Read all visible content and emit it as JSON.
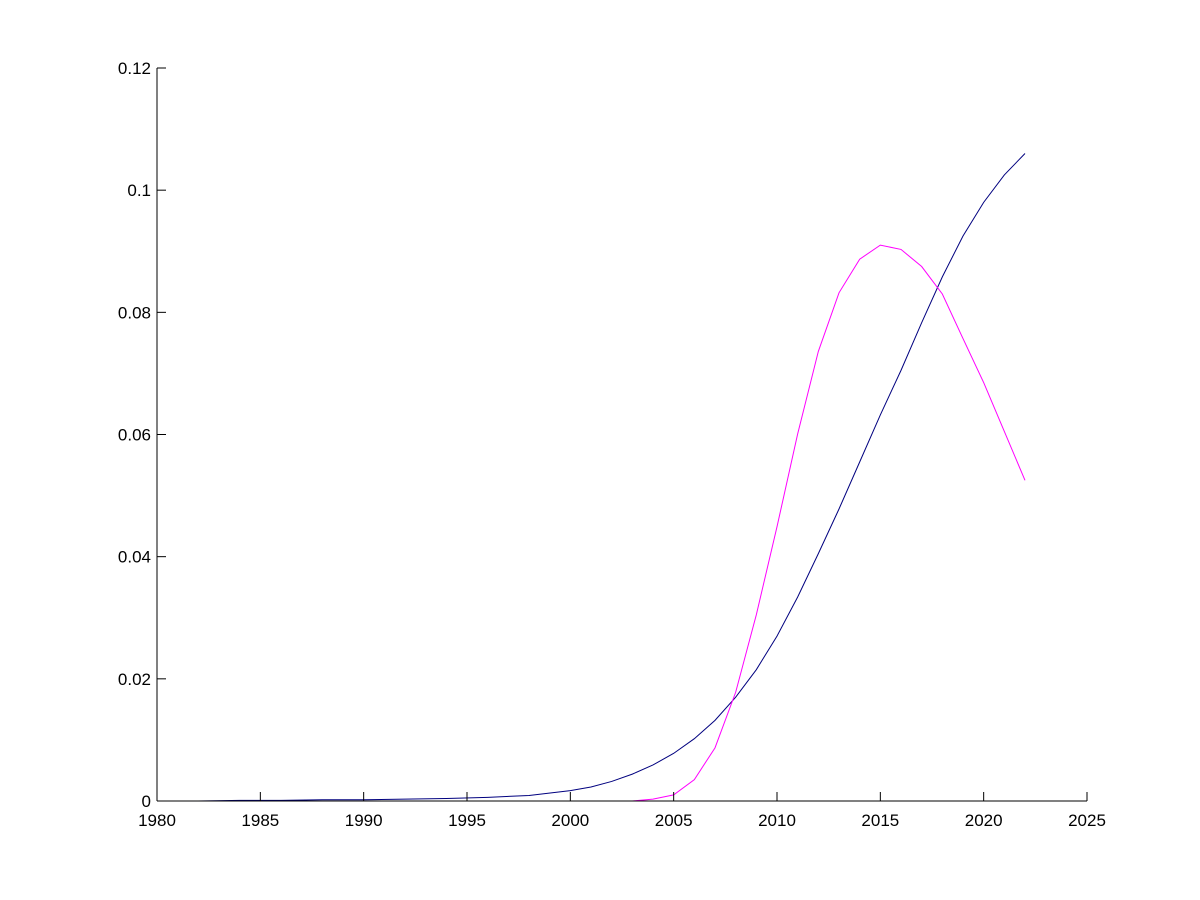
{
  "chart_data": {
    "type": "line",
    "title": "",
    "xlabel": "",
    "ylabel": "",
    "xlim": [
      1980,
      2025
    ],
    "ylim": [
      0,
      0.12
    ],
    "grid": false,
    "box": false,
    "xticks": [
      1980,
      1985,
      1990,
      1995,
      2000,
      2005,
      2010,
      2015,
      2020,
      2025
    ],
    "xtick_labels": [
      "1980",
      "1985",
      "1990",
      "1995",
      "2000",
      "2005",
      "2010",
      "2015",
      "2020",
      "2025"
    ],
    "yticks": [
      0,
      0.02,
      0.04,
      0.06,
      0.08,
      0.1,
      0.12
    ],
    "ytick_labels": [
      "0",
      "0.02",
      "0.04",
      "0.06",
      "0.08",
      "0.1",
      "0.12"
    ],
    "series": [
      {
        "color": "#00007f",
        "x": [
          1980,
          1982,
          1984,
          1986,
          1988,
          1990,
          1992,
          1994,
          1996,
          1998,
          2000,
          2001,
          2002,
          2003,
          2004,
          2005,
          2006,
          2007,
          2008,
          2009,
          2010,
          2011,
          2012,
          2013,
          2014,
          2015,
          2016,
          2017,
          2018,
          2019,
          2020,
          2021,
          2022
        ],
        "y": [
          0.0,
          0.0,
          0.0001,
          0.0001,
          0.0002,
          0.0002,
          0.0003,
          0.0004,
          0.0006,
          0.0009,
          0.0017,
          0.0023,
          0.0032,
          0.0044,
          0.0059,
          0.0078,
          0.0102,
          0.0132,
          0.017,
          0.0215,
          0.027,
          0.0334,
          0.0405,
          0.0478,
          0.0555,
          0.0632,
          0.0705,
          0.0783,
          0.0858,
          0.0925,
          0.098,
          0.1025,
          0.106
        ]
      },
      {
        "color": "#ff00ff",
        "x": [
          1980,
          1990,
          2000,
          2003,
          2004,
          2005,
          2006,
          2007,
          2008,
          2009,
          2010,
          2011,
          2012,
          2013,
          2014,
          2015,
          2016,
          2017,
          2018,
          2019,
          2020,
          2021,
          2022
        ],
        "y": [
          0.0,
          0.0,
          0.0,
          0.0,
          0.0003,
          0.001,
          0.0035,
          0.0087,
          0.0178,
          0.0305,
          0.0449,
          0.0601,
          0.0736,
          0.0832,
          0.0887,
          0.091,
          0.0903,
          0.0875,
          0.083,
          0.0757,
          0.0685,
          0.0605,
          0.0525
        ]
      }
    ]
  }
}
